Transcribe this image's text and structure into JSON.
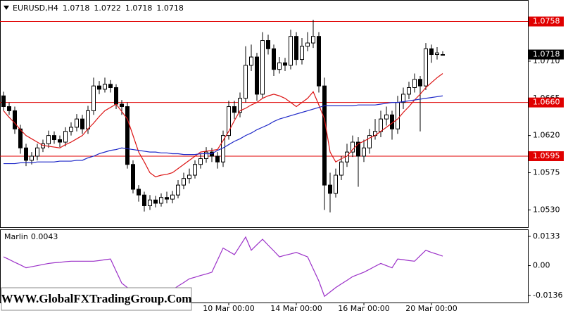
{
  "chart_data": [
    {
      "type": "candlestick",
      "title": "EURUSD,H4",
      "categories": [
        null,
        null,
        null,
        null,
        null,
        null,
        null,
        null,
        null,
        null,
        null,
        null,
        null,
        null,
        null,
        null,
        null,
        null,
        null,
        null,
        null,
        null,
        null,
        null,
        null,
        null,
        null,
        null,
        null,
        null,
        null,
        null,
        null,
        null,
        null,
        null,
        null,
        null,
        null,
        null,
        "10 Mar 00:00",
        null,
        null,
        null,
        null,
        null,
        null,
        null,
        null,
        null,
        null,
        null,
        "14 Mar 00:00",
        null,
        null,
        null,
        null,
        null,
        null,
        null,
        null,
        null,
        null,
        null,
        "16 Mar 00:00",
        null,
        null,
        null,
        null,
        null,
        null,
        null,
        null,
        null,
        null,
        null,
        "20 Mar 00:00",
        null,
        null
      ],
      "open": [
        1.0668,
        1.0655,
        1.065,
        1.0628,
        1.0605,
        1.059,
        1.0595,
        1.0605,
        1.061,
        1.062,
        1.0615,
        1.0612,
        1.0625,
        1.063,
        1.064,
        1.0628,
        1.065,
        1.068,
        1.0676,
        1.0682,
        1.0678,
        1.0658,
        1.0655,
        1.0585,
        1.0555,
        1.0548,
        1.0535,
        1.0542,
        1.0538,
        1.0545,
        1.0543,
        1.0548,
        1.056,
        1.0568,
        1.0572,
        1.0585,
        1.0592,
        1.06,
        1.0595,
        1.0588,
        1.062,
        1.0655,
        1.0648,
        1.0665,
        1.0705,
        1.0715,
        1.067,
        1.0735,
        1.0725,
        1.07,
        1.0708,
        1.0705,
        1.074,
        1.0712,
        1.0728,
        1.0732,
        1.074,
        1.068,
        1.056,
        1.055,
        1.0572,
        1.0588,
        1.06,
        1.0612,
        1.0595,
        1.0605,
        1.062,
        1.0625,
        1.064,
        1.0645,
        1.0628,
        1.066,
        1.067,
        1.0678,
        1.0688,
        1.068,
        1.0725,
        1.0718,
        1.0718
      ],
      "high": [
        1.0673,
        1.066,
        1.0655,
        1.0633,
        1.061,
        1.06,
        1.061,
        1.0615,
        1.0626,
        1.0625,
        1.062,
        1.063,
        1.0636,
        1.0646,
        1.0645,
        1.0656,
        1.069,
        1.0686,
        1.069,
        1.0687,
        1.0682,
        1.0663,
        1.066,
        1.059,
        1.056,
        1.0552,
        1.0548,
        1.0547,
        1.055,
        1.0552,
        1.0553,
        1.0566,
        1.0575,
        1.058,
        1.059,
        1.0598,
        1.0606,
        1.0605,
        1.06,
        1.0626,
        1.0662,
        1.0662,
        1.0672,
        1.0728,
        1.073,
        1.072,
        1.0745,
        1.0742,
        1.073,
        1.0715,
        1.0714,
        1.0748,
        1.0745,
        1.0738,
        1.0745,
        1.076,
        1.0745,
        1.069,
        1.0575,
        1.058,
        1.0595,
        1.061,
        1.062,
        1.0618,
        1.0615,
        1.0628,
        1.064,
        1.065,
        1.0655,
        1.065,
        1.0668,
        1.0678,
        1.0685,
        1.0695,
        1.0692,
        1.0732,
        1.073,
        1.0727,
        1.0722
      ],
      "low": [
        1.065,
        1.0645,
        1.0622,
        1.0598,
        1.0583,
        1.0585,
        1.059,
        1.06,
        1.0605,
        1.061,
        1.0606,
        1.0607,
        1.062,
        1.0625,
        1.0622,
        1.0622,
        1.0645,
        1.067,
        1.0672,
        1.0672,
        1.0652,
        1.0645,
        1.058,
        1.055,
        1.054,
        1.0528,
        1.053,
        1.0533,
        1.0534,
        1.0538,
        1.0538,
        1.0544,
        1.0555,
        1.0562,
        1.0568,
        1.058,
        1.0587,
        1.0588,
        1.058,
        1.0582,
        1.0615,
        1.064,
        1.0642,
        1.066,
        1.0698,
        1.0662,
        1.0665,
        1.0718,
        1.0692,
        1.0695,
        1.0698,
        1.07,
        1.0705,
        1.0706,
        1.0722,
        1.0726,
        1.0672,
        1.053,
        1.0527,
        1.0545,
        1.0566,
        1.0582,
        1.0594,
        1.0558,
        1.0588,
        1.0598,
        1.0615,
        1.0618,
        1.0632,
        1.0615,
        1.0622,
        1.0652,
        1.0664,
        1.0672,
        1.0625,
        1.0675,
        1.0708,
        1.0712,
        1.0718
      ],
      "close": [
        1.0655,
        1.065,
        1.0628,
        1.0605,
        1.059,
        1.0595,
        1.0605,
        1.061,
        1.062,
        1.0615,
        1.0612,
        1.0625,
        1.063,
        1.064,
        1.0628,
        1.065,
        1.068,
        1.0676,
        1.0682,
        1.0678,
        1.0658,
        1.0655,
        1.0585,
        1.0555,
        1.0548,
        1.0535,
        1.0542,
        1.0538,
        1.0545,
        1.0543,
        1.0548,
        1.056,
        1.0568,
        1.0572,
        1.0585,
        1.0592,
        1.06,
        1.0595,
        1.0588,
        1.062,
        1.0655,
        1.0648,
        1.0665,
        1.0705,
        1.0715,
        1.067,
        1.0735,
        1.0725,
        1.07,
        1.0708,
        1.0705,
        1.074,
        1.0712,
        1.0728,
        1.0732,
        1.074,
        1.068,
        1.056,
        1.055,
        1.0572,
        1.0588,
        1.06,
        1.0612,
        1.0595,
        1.0605,
        1.062,
        1.0625,
        1.064,
        1.0645,
        1.0628,
        1.066,
        1.067,
        1.0678,
        1.0688,
        1.068,
        1.0725,
        1.0718,
        1.072,
        1.0718
      ],
      "bull_color": "#ffffff",
      "bear_color": "#000000",
      "series": [
        {
          "color": "#dc1414",
          "values": [
            1.065,
            1.0642,
            1.0635,
            1.0627,
            1.062,
            1.0616,
            1.0612,
            1.0608,
            1.0607,
            1.0606,
            1.0605,
            1.0609,
            1.0612,
            1.0616,
            1.062,
            1.0628,
            1.0635,
            1.0643,
            1.065,
            1.0654,
            1.0658,
            1.0649,
            1.064,
            1.062,
            1.06,
            1.0588,
            1.0575,
            1.057,
            1.0572,
            1.0573,
            1.0575,
            1.058,
            1.0585,
            1.059,
            1.0595,
            1.06,
            1.0601,
            1.0602,
            1.0603,
            1.0614,
            1.0625,
            1.0638,
            1.065,
            1.0653,
            1.0657,
            1.066,
            1.0665,
            1.0668,
            1.067,
            1.0668,
            1.0665,
            1.066,
            1.0655,
            1.066,
            1.0665,
            1.0673,
            1.0657,
            1.064,
            1.06,
            1.0588,
            1.0592,
            1.0595,
            1.0603,
            1.061,
            1.0613,
            1.0617,
            1.062,
            1.0625,
            1.063,
            1.0635,
            1.064,
            1.0648,
            1.0655,
            1.0663,
            1.067,
            1.0678,
            1.0684,
            1.069,
            1.0695
          ]
        },
        {
          "color": "#1e28c8",
          "values": [
            1.0586,
            1.0586,
            1.0586,
            1.0587,
            1.0587,
            1.0587,
            1.0588,
            1.0588,
            1.0588,
            1.0588,
            1.0589,
            1.0589,
            1.0589,
            1.059,
            1.059,
            1.0593,
            1.0595,
            1.0598,
            1.06,
            1.0602,
            1.0603,
            1.0605,
            1.0604,
            1.0603,
            1.0602,
            1.0601,
            1.06,
            1.06,
            1.0599,
            1.0599,
            1.0598,
            1.0598,
            1.0597,
            1.0597,
            1.0597,
            1.0598,
            1.0598,
            1.0598,
            1.0602,
            1.0605,
            1.0609,
            1.0613,
            1.0616,
            1.062,
            1.0623,
            1.0627,
            1.063,
            1.0633,
            1.0637,
            1.064,
            1.0642,
            1.0644,
            1.0646,
            1.0648,
            1.065,
            1.0652,
            1.0654,
            1.0656,
            1.0656,
            1.0656,
            1.0656,
            1.0656,
            1.0656,
            1.0657,
            1.0657,
            1.0657,
            1.0657,
            1.0658,
            1.0659,
            1.066,
            1.066,
            1.0661,
            1.0662,
            1.0663,
            1.0664,
            1.0665,
            1.0666,
            1.0667,
            1.0668
          ]
        }
      ],
      "levels": [
        1.0758,
        {
          "value": 1.066,
          "label": "1.0660"
        },
        1.0595
      ],
      "level_color": "#e00000",
      "ylim": [
        1.0509,
        1.0784
      ],
      "yticks": [
        {
          "value": 1.071,
          "label": "1.0710"
        },
        1.0665,
        {
          "value": 1.062,
          "label": "1.0620"
        },
        1.0575,
        {
          "value": 1.053,
          "label": "1.0530"
        }
      ],
      "grid": false
    },
    {
      "type": "line",
      "series": [
        {
          "name": "Marlin",
          "color": "#9b30c8",
          "values": [
            0.004,
            0.0028,
            0.0015,
            0.0003,
            -0.001,
            -0.0005,
            0.0,
            0.0005,
            0.001,
            0.0013,
            0.0015,
            0.0018,
            0.002,
            0.002,
            0.002,
            0.002,
            0.002,
            0.0023,
            0.0027,
            0.003,
            -0.0025,
            -0.008,
            -0.01,
            -0.0115,
            -0.013,
            -0.013,
            -0.013,
            -0.013,
            -0.0123,
            -0.0117,
            -0.011,
            -0.0093,
            -0.0077,
            -0.006,
            -0.0053,
            -0.0045,
            -0.0038,
            -0.003,
            0.0025,
            0.008,
            0.0065,
            0.005,
            0.009,
            0.013,
            0.007,
            0.0095,
            0.012,
            0.0093,
            0.0067,
            0.004,
            0.0047,
            0.0053,
            0.006,
            0.005,
            0.004,
            -0.0015,
            -0.007,
            -0.014,
            -0.012,
            -0.01,
            -0.0083,
            -0.0067,
            -0.005,
            -0.004,
            -0.003,
            -0.0017,
            -0.0003,
            0.001,
            0.0,
            -0.001,
            0.003,
            0.0027,
            0.0023,
            0.002,
            0.0045,
            0.007,
            0.006,
            0.0052,
            0.0043
          ]
        }
      ],
      "ylim": [
        -0.0168,
        0.0165
      ],
      "yticks": [
        0.0133,
        {
          "value": 0,
          "label": "0.00"
        },
        -0.0136
      ],
      "grid": false
    }
  ],
  "watermark": "WWW.GlobalFXTradingGroup.Com"
}
